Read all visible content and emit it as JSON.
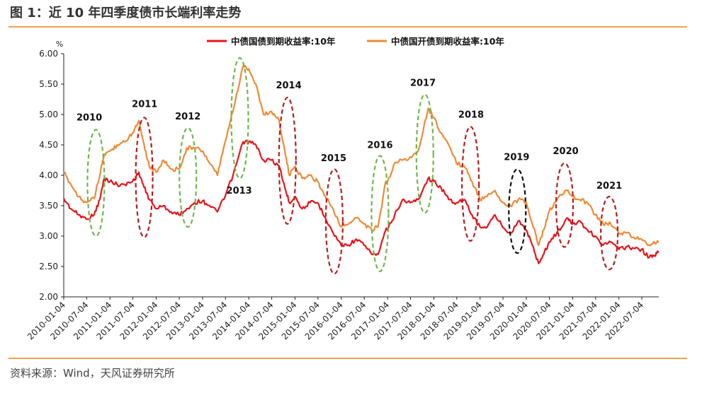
{
  "header": {
    "title": "图 1：近 10 年四季度债市长端利率走势"
  },
  "footer": {
    "source": "资料来源：Wind，天风证券研究所"
  },
  "colors": {
    "rule": "#f0a155",
    "treasury": "#e8141b",
    "cdb": "#ef8a35",
    "green": "#6fb74b",
    "darkred": "#b71c1c",
    "black": "#111111"
  },
  "chart_data": {
    "type": "line",
    "title": "",
    "ylabel": "%",
    "ylim": [
      2.0,
      6.0
    ],
    "yticks": [
      "2.00",
      "2.50",
      "3.00",
      "3.50",
      "4.00",
      "4.50",
      "5.00",
      "5.50",
      "6.00"
    ],
    "xrange": [
      "2010-01-04",
      "2022-11-15"
    ],
    "xticks": [
      "2010-01-04",
      "2010-07-04",
      "2011-01-04",
      "2011-07-04",
      "2012-01-04",
      "2012-07-04",
      "2013-01-04",
      "2013-07-04",
      "2014-01-04",
      "2014-07-04",
      "2015-01-04",
      "2015-07-04",
      "2016-01-04",
      "2016-07-04",
      "2017-01-04",
      "2017-07-04",
      "2018-01-04",
      "2018-07-04",
      "2019-01-04",
      "2019-07-04",
      "2020-01-04",
      "2020-07-04",
      "2021-01-04",
      "2021-07-04",
      "2022-01-04",
      "2022-07-04"
    ],
    "legend_position": "top",
    "series": [
      {
        "name": "中债国债到期收益率:10年",
        "color": "#e8141b",
        "points": [
          [
            "2010-01-04",
            3.62
          ],
          [
            "2010-03-01",
            3.45
          ],
          [
            "2010-05-01",
            3.35
          ],
          [
            "2010-07-01",
            3.28
          ],
          [
            "2010-09-01",
            3.35
          ],
          [
            "2010-10-15",
            3.6
          ],
          [
            "2010-11-20",
            3.95
          ],
          [
            "2011-01-04",
            3.9
          ],
          [
            "2011-03-01",
            3.85
          ],
          [
            "2011-05-01",
            3.85
          ],
          [
            "2011-07-01",
            3.9
          ],
          [
            "2011-08-20",
            4.05
          ],
          [
            "2011-10-01",
            3.8
          ],
          [
            "2011-11-10",
            3.6
          ],
          [
            "2012-01-04",
            3.45
          ],
          [
            "2012-03-01",
            3.5
          ],
          [
            "2012-05-01",
            3.4
          ],
          [
            "2012-07-01",
            3.35
          ],
          [
            "2012-09-01",
            3.45
          ],
          [
            "2012-11-01",
            3.55
          ],
          [
            "2013-01-04",
            3.58
          ],
          [
            "2013-03-01",
            3.5
          ],
          [
            "2013-05-01",
            3.4
          ],
          [
            "2013-07-01",
            3.65
          ],
          [
            "2013-09-01",
            4.0
          ],
          [
            "2013-11-20",
            4.55
          ],
          [
            "2014-01-04",
            4.55
          ],
          [
            "2014-03-01",
            4.5
          ],
          [
            "2014-05-01",
            4.25
          ],
          [
            "2014-07-01",
            4.25
          ],
          [
            "2014-09-01",
            4.15
          ],
          [
            "2014-10-15",
            3.8
          ],
          [
            "2014-11-20",
            3.55
          ],
          [
            "2015-01-04",
            3.65
          ],
          [
            "2015-03-01",
            3.45
          ],
          [
            "2015-05-01",
            3.55
          ],
          [
            "2015-07-01",
            3.55
          ],
          [
            "2015-09-01",
            3.3
          ],
          [
            "2015-11-01",
            3.05
          ],
          [
            "2016-01-04",
            2.85
          ],
          [
            "2016-03-01",
            2.85
          ],
          [
            "2016-05-01",
            2.95
          ],
          [
            "2016-07-01",
            2.85
          ],
          [
            "2016-09-01",
            2.7
          ],
          [
            "2016-10-20",
            2.7
          ],
          [
            "2016-12-20",
            3.1
          ],
          [
            "2017-01-04",
            3.1
          ],
          [
            "2017-03-01",
            3.35
          ],
          [
            "2017-05-01",
            3.6
          ],
          [
            "2017-07-01",
            3.55
          ],
          [
            "2017-09-01",
            3.6
          ],
          [
            "2017-11-20",
            3.95
          ],
          [
            "2018-01-04",
            3.9
          ],
          [
            "2018-03-01",
            3.8
          ],
          [
            "2018-05-01",
            3.6
          ],
          [
            "2018-07-01",
            3.55
          ],
          [
            "2018-09-01",
            3.6
          ],
          [
            "2018-11-01",
            3.35
          ],
          [
            "2019-01-04",
            3.15
          ],
          [
            "2019-03-01",
            3.15
          ],
          [
            "2019-05-01",
            3.35
          ],
          [
            "2019-07-01",
            3.15
          ],
          [
            "2019-09-01",
            3.05
          ],
          [
            "2019-11-01",
            3.25
          ],
          [
            "2020-01-04",
            3.1
          ],
          [
            "2020-02-20",
            2.85
          ],
          [
            "2020-04-10",
            2.55
          ],
          [
            "2020-05-20",
            2.7
          ],
          [
            "2020-07-01",
            2.9
          ],
          [
            "2020-09-01",
            3.05
          ],
          [
            "2020-11-20",
            3.3
          ],
          [
            "2021-01-04",
            3.2
          ],
          [
            "2021-03-01",
            3.25
          ],
          [
            "2021-05-01",
            3.1
          ],
          [
            "2021-07-01",
            3.0
          ],
          [
            "2021-09-01",
            2.85
          ],
          [
            "2021-11-01",
            2.9
          ],
          [
            "2022-01-04",
            2.78
          ],
          [
            "2022-03-01",
            2.82
          ],
          [
            "2022-05-01",
            2.8
          ],
          [
            "2022-07-01",
            2.78
          ],
          [
            "2022-09-01",
            2.65
          ],
          [
            "2022-10-15",
            2.68
          ],
          [
            "2022-11-15",
            2.75
          ]
        ]
      },
      {
        "name": "中债国开债到期收益率:10年",
        "color": "#ef8a35",
        "points": [
          [
            "2010-01-04",
            4.05
          ],
          [
            "2010-03-01",
            3.85
          ],
          [
            "2010-05-01",
            3.65
          ],
          [
            "2010-07-01",
            3.55
          ],
          [
            "2010-09-01",
            3.62
          ],
          [
            "2010-10-15",
            4.0
          ],
          [
            "2010-11-20",
            4.35
          ],
          [
            "2011-01-04",
            4.4
          ],
          [
            "2011-03-01",
            4.5
          ],
          [
            "2011-05-01",
            4.55
          ],
          [
            "2011-07-01",
            4.7
          ],
          [
            "2011-08-20",
            4.9
          ],
          [
            "2011-10-01",
            4.5
          ],
          [
            "2011-11-10",
            4.15
          ],
          [
            "2012-01-04",
            4.05
          ],
          [
            "2012-03-01",
            4.25
          ],
          [
            "2012-05-01",
            4.1
          ],
          [
            "2012-07-01",
            4.1
          ],
          [
            "2012-09-01",
            4.45
          ],
          [
            "2012-11-01",
            4.45
          ],
          [
            "2013-01-04",
            4.4
          ],
          [
            "2013-03-01",
            4.2
          ],
          [
            "2013-05-01",
            4.0
          ],
          [
            "2013-07-01",
            4.55
          ],
          [
            "2013-09-01",
            5.05
          ],
          [
            "2013-11-20",
            5.8
          ],
          [
            "2014-01-04",
            5.75
          ],
          [
            "2014-03-01",
            5.5
          ],
          [
            "2014-05-01",
            5.0
          ],
          [
            "2014-07-01",
            5.05
          ],
          [
            "2014-09-01",
            4.9
          ],
          [
            "2014-10-15",
            4.4
          ],
          [
            "2014-11-20",
            4.0
          ],
          [
            "2015-01-04",
            4.15
          ],
          [
            "2015-03-01",
            3.95
          ],
          [
            "2015-05-01",
            4.0
          ],
          [
            "2015-07-01",
            3.9
          ],
          [
            "2015-09-01",
            3.65
          ],
          [
            "2015-11-01",
            3.45
          ],
          [
            "2016-01-04",
            3.15
          ],
          [
            "2016-03-01",
            3.2
          ],
          [
            "2016-05-01",
            3.3
          ],
          [
            "2016-07-01",
            3.2
          ],
          [
            "2016-09-01",
            3.1
          ],
          [
            "2016-10-20",
            3.15
          ],
          [
            "2016-12-20",
            3.9
          ],
          [
            "2017-01-04",
            3.9
          ],
          [
            "2017-03-01",
            4.2
          ],
          [
            "2017-05-01",
            4.25
          ],
          [
            "2017-07-01",
            4.3
          ],
          [
            "2017-09-01",
            4.4
          ],
          [
            "2017-11-20",
            5.1
          ],
          [
            "2018-01-04",
            4.95
          ],
          [
            "2018-03-01",
            4.7
          ],
          [
            "2018-05-01",
            4.5
          ],
          [
            "2018-07-01",
            4.2
          ],
          [
            "2018-09-01",
            4.15
          ],
          [
            "2018-11-01",
            3.9
          ],
          [
            "2019-01-04",
            3.6
          ],
          [
            "2019-03-01",
            3.65
          ],
          [
            "2019-05-01",
            3.75
          ],
          [
            "2019-07-01",
            3.55
          ],
          [
            "2019-09-01",
            3.5
          ],
          [
            "2019-11-01",
            3.6
          ],
          [
            "2020-01-04",
            3.55
          ],
          [
            "2020-02-20",
            3.2
          ],
          [
            "2020-04-10",
            2.85
          ],
          [
            "2020-05-20",
            3.1
          ],
          [
            "2020-07-01",
            3.4
          ],
          [
            "2020-09-01",
            3.6
          ],
          [
            "2020-11-20",
            3.75
          ],
          [
            "2021-01-04",
            3.65
          ],
          [
            "2021-03-01",
            3.6
          ],
          [
            "2021-05-01",
            3.55
          ],
          [
            "2021-07-01",
            3.35
          ],
          [
            "2021-09-01",
            3.2
          ],
          [
            "2021-11-01",
            3.2
          ],
          [
            "2022-01-04",
            3.05
          ],
          [
            "2022-03-01",
            3.05
          ],
          [
            "2022-05-01",
            2.98
          ],
          [
            "2022-07-01",
            2.95
          ],
          [
            "2022-09-01",
            2.85
          ],
          [
            "2022-10-15",
            2.88
          ],
          [
            "2022-11-15",
            2.9
          ]
        ]
      }
    ],
    "annotations": [
      {
        "label": "2010",
        "color": "#6fb74b",
        "center": "2010-09-15",
        "ymin": 3.0,
        "ymax": 4.75,
        "label_x": "2010-07-25",
        "label_y": 4.9
      },
      {
        "label": "2011",
        "color": "#b71c1c",
        "center": "2011-10-01",
        "ymin": 2.98,
        "ymax": 4.95,
        "label_x": "2011-10-05",
        "label_y": 5.12
      },
      {
        "label": "2012",
        "color": "#6fb74b",
        "center": "2012-09-10",
        "ymin": 3.15,
        "ymax": 4.78,
        "label_x": "2012-09-10",
        "label_y": 4.92
      },
      {
        "label": "2013",
        "color": "#6fb74b",
        "center": "2013-10-25",
        "ymin": 3.95,
        "ymax": 5.93,
        "label_x": "2013-10-20",
        "label_y": 3.7
      },
      {
        "label": "2014",
        "color": "#b71c1c",
        "center": "2014-11-05",
        "ymin": 3.2,
        "ymax": 5.28,
        "label_x": "2014-11-15",
        "label_y": 5.43
      },
      {
        "label": "2015",
        "color": "#b71c1c",
        "center": "2015-11-10",
        "ymin": 2.38,
        "ymax": 4.1,
        "label_x": "2015-11-05",
        "label_y": 4.23
      },
      {
        "label": "2016",
        "color": "#6fb74b",
        "center": "2016-11-05",
        "ymin": 2.42,
        "ymax": 4.32,
        "label_x": "2016-11-05",
        "label_y": 4.45
      },
      {
        "label": "2017",
        "color": "#6fb74b",
        "center": "2017-10-25",
        "ymin": 3.38,
        "ymax": 5.33,
        "label_x": "2017-10-10",
        "label_y": 5.47
      },
      {
        "label": "2018",
        "color": "#b71c1c",
        "center": "2018-10-20",
        "ymin": 2.92,
        "ymax": 4.8,
        "label_x": "2018-10-25",
        "label_y": 4.95
      },
      {
        "label": "2019",
        "color": "#111111",
        "center": "2019-10-25",
        "ymin": 2.72,
        "ymax": 4.1,
        "label_x": "2019-10-20",
        "label_y": 4.25
      },
      {
        "label": "2020",
        "color": "#b71c1c",
        "center": "2020-11-01",
        "ymin": 2.82,
        "ymax": 4.2,
        "label_x": "2020-11-10",
        "label_y": 4.35
      },
      {
        "label": "2021",
        "color": "#b71c1c",
        "center": "2021-10-20",
        "ymin": 2.45,
        "ymax": 3.65,
        "label_x": "2021-10-20",
        "label_y": 3.78
      }
    ]
  }
}
